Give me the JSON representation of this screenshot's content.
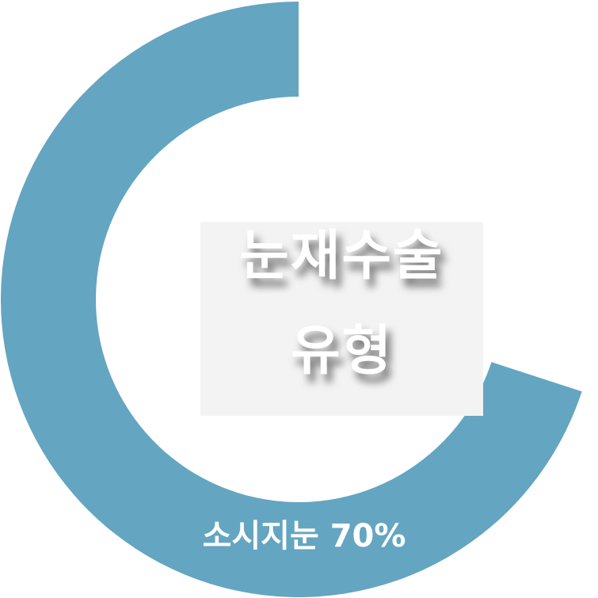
{
  "chart_data": {
    "type": "pie",
    "style": "donut",
    "slices": [
      {
        "label": "소시지눈",
        "value": 70,
        "color": "#64a5c2"
      }
    ],
    "center_text": [
      "눈재수술",
      "유형"
    ],
    "data_label": "소시지눈 70%"
  }
}
